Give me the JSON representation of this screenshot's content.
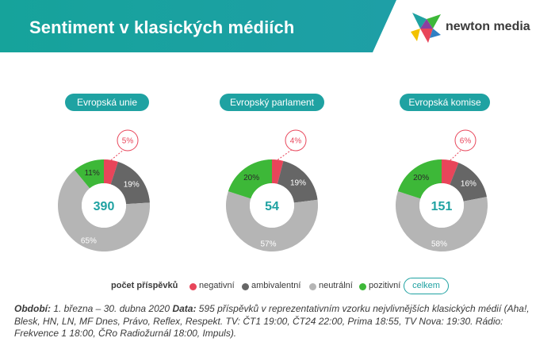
{
  "header": {
    "title": "Sentiment v klasických médiích",
    "brand": "newton media",
    "brand_logo_icon": "newton-media-logo",
    "banner_color": "#1fa2a2"
  },
  "colors": {
    "negativni": "#e8455a",
    "ambivalentni": "#666666",
    "neutralni": "#b5b5b5",
    "pozitivni": "#3db838",
    "total": "#1fa2a2",
    "label_on_dark": "#ffffff"
  },
  "chart_data": [
    {
      "type": "pie",
      "title": "Evropská unie",
      "total": "390",
      "slices": [
        {
          "name": "negativní",
          "value": 5,
          "label": "5%"
        },
        {
          "name": "ambivalentní",
          "value": 19,
          "label": "19%"
        },
        {
          "name": "neutrální",
          "value": 65,
          "label": "65%"
        },
        {
          "name": "pozitivní",
          "value": 11,
          "label": "11%"
        }
      ]
    },
    {
      "type": "pie",
      "title": "Evropský parlament",
      "total": "54",
      "slices": [
        {
          "name": "negativní",
          "value": 4,
          "label": "4%"
        },
        {
          "name": "ambivalentní",
          "value": 19,
          "label": "19%"
        },
        {
          "name": "neutrální",
          "value": 57,
          "label": "57%"
        },
        {
          "name": "pozitivní",
          "value": 20,
          "label": "20%"
        }
      ]
    },
    {
      "type": "pie",
      "title": "Evropská komise",
      "total": "151",
      "slices": [
        {
          "name": "negativní",
          "value": 6,
          "label": "6%"
        },
        {
          "name": "ambivalentní",
          "value": 16,
          "label": "16%"
        },
        {
          "name": "neutrální",
          "value": 58,
          "label": "58%"
        },
        {
          "name": "pozitivní",
          "value": 20,
          "label": "20%"
        }
      ]
    }
  ],
  "legend": {
    "title": "počet příspěvků",
    "items": [
      "negativní",
      "ambivalentní",
      "neutrální",
      "pozitivní"
    ],
    "total_label": "celkem"
  },
  "footnote": {
    "period_label": "Období:",
    "period_text": " 1. března – 30. dubna 2020 ",
    "data_label": "Data:",
    "data_text": " 595 příspěvků v reprezentativním vzorku nejvlivnějších klasických médií (Aha!, Blesk, HN, LN, MF Dnes, Právo, Reflex, Respekt. TV: ČT1 19:00, ČT24 22:00, Prima 18:55, TV Nova: 19:30. Rádio: Frekvence 1 18:00, ČRo Radiožurnál 18:00, Impuls)."
  }
}
